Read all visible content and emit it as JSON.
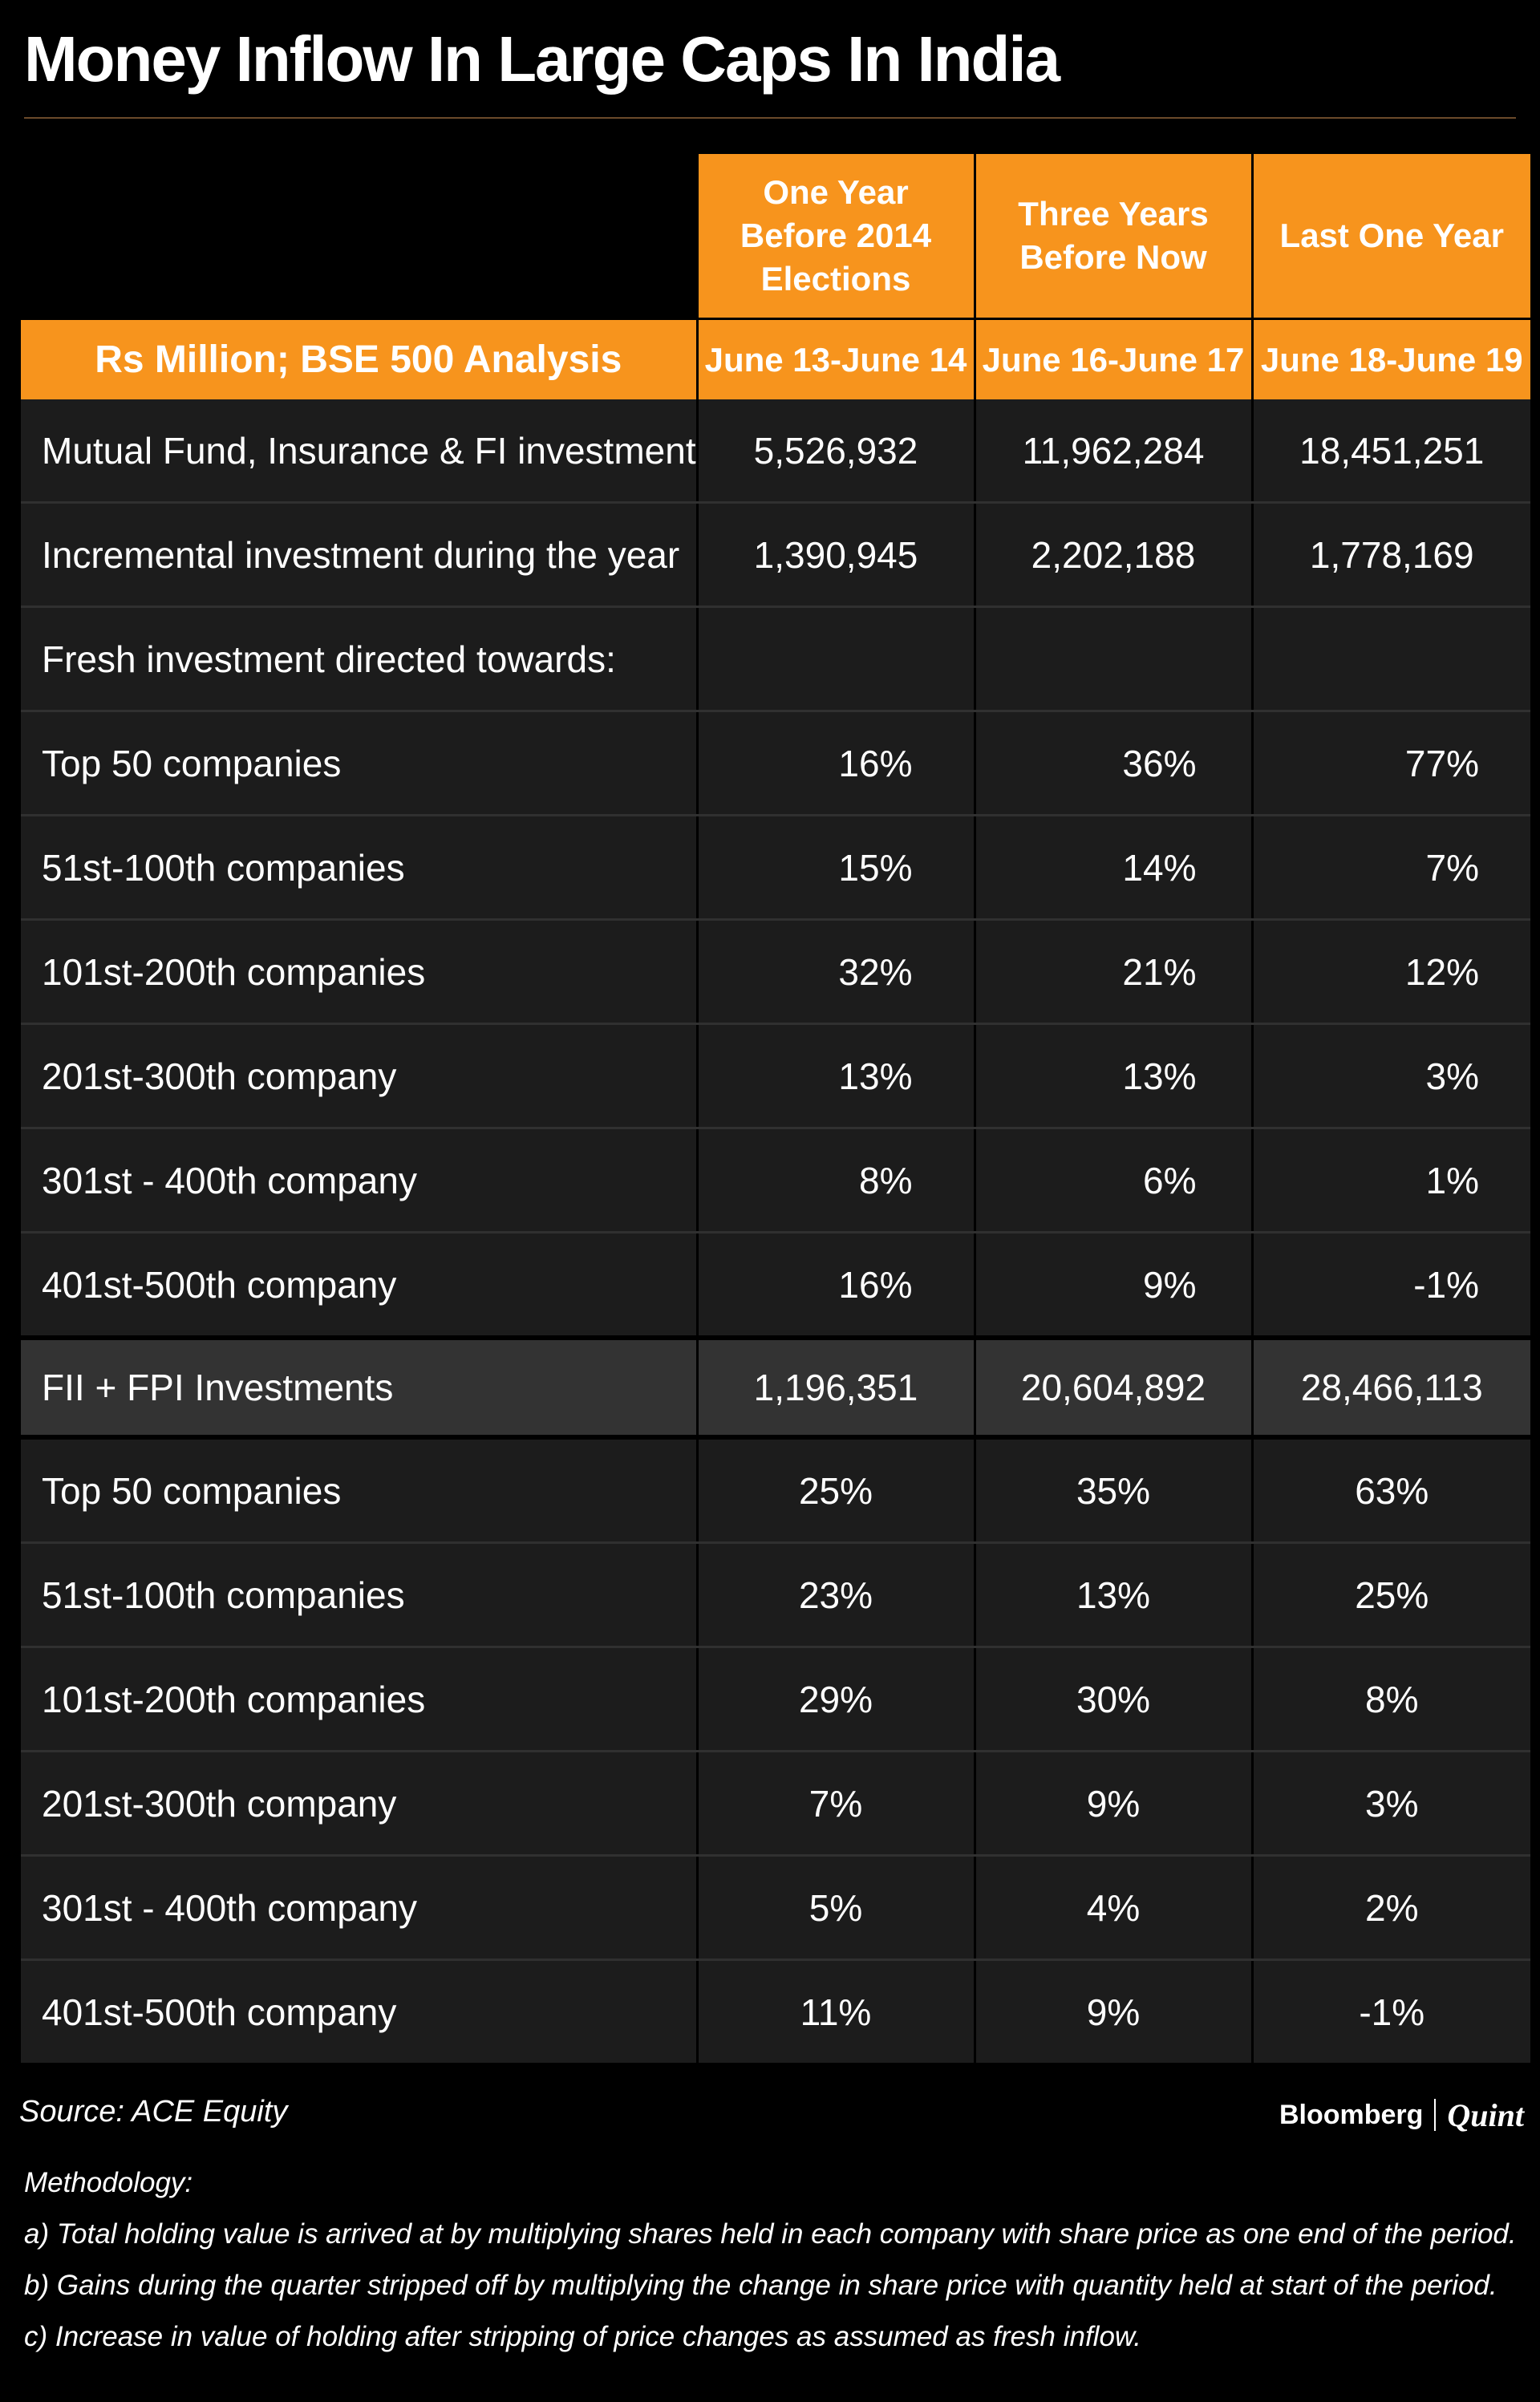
{
  "title": "Money Inflow In Large Caps In India",
  "colors": {
    "accent": "#f7941d",
    "background": "#000000",
    "row": "#1c1c1c",
    "highlight_row": "#333333"
  },
  "chart_data": {
    "type": "table",
    "title": "Money Inflow In Large Caps In India",
    "unit_label": "Rs Million; BSE 500 Analysis",
    "column_headers": [
      "One Year Before 2014 Elections",
      "Three Years Before Now",
      "Last One Year"
    ],
    "column_periods": [
      "June 13-June 14",
      "June 16-June 17",
      "June 18-June 19"
    ],
    "mutual_fund_section": {
      "rows": [
        {
          "label": "Mutual Fund, Insurance & FI investments",
          "values": [
            "5,526,932",
            "11,962,284",
            "18,451,251"
          ]
        },
        {
          "label": "Incremental investment during the year",
          "values": [
            "1,390,945",
            "2,202,188",
            "1,778,169"
          ]
        },
        {
          "label": "Fresh investment directed towards:",
          "values": [
            "",
            "",
            ""
          ]
        },
        {
          "label": "Top 50 companies",
          "values": [
            "16%",
            "36%",
            "77%"
          ]
        },
        {
          "label": "51st-100th companies",
          "values": [
            "15%",
            "14%",
            "7%"
          ]
        },
        {
          "label": "101st-200th companies",
          "values": [
            "32%",
            "21%",
            "12%"
          ]
        },
        {
          "label": "201st-300th company",
          "values": [
            "13%",
            "13%",
            "3%"
          ]
        },
        {
          "label": "301st - 400th company",
          "values": [
            "8%",
            "6%",
            "1%"
          ]
        },
        {
          "label": "401st-500th company",
          "values": [
            "16%",
            "9%",
            "-1%"
          ]
        }
      ]
    },
    "fii_section": {
      "header": {
        "label": "FII + FPI Investments",
        "values": [
          "1,196,351",
          "20,604,892",
          "28,466,113"
        ]
      },
      "rows": [
        {
          "label": "Top 50 companies",
          "values": [
            "25%",
            "35%",
            "63%"
          ]
        },
        {
          "label": "51st-100th companies",
          "values": [
            "23%",
            "13%",
            "25%"
          ]
        },
        {
          "label": "101st-200th companies",
          "values": [
            "29%",
            "30%",
            "8%"
          ]
        },
        {
          "label": "201st-300th company",
          "values": [
            "7%",
            "9%",
            "3%"
          ]
        },
        {
          "label": "301st - 400th company",
          "values": [
            "5%",
            "4%",
            "2%"
          ]
        },
        {
          "label": "401st-500th company",
          "values": [
            "11%",
            "9%",
            "-1%"
          ]
        }
      ]
    }
  },
  "source": "Source: ACE Equity",
  "logo": {
    "brand": "Bloomberg",
    "sub": "Quint"
  },
  "methodology": {
    "heading": "Methodology:",
    "items": [
      "a) Total holding value is arrived at by multiplying shares held in each company with share price as one end of the period.",
      "b) Gains during the quarter stripped off by multiplying the change in share price with quantity held at start of the period.",
      "c) Increase in value of holding after stripping of price changes as assumed as fresh inflow."
    ]
  }
}
